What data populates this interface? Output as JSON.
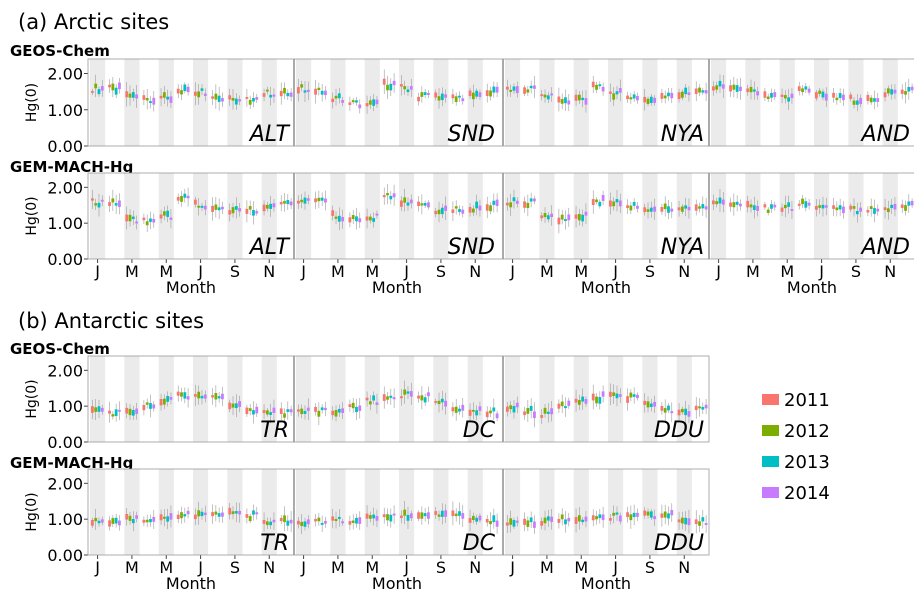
{
  "figure": {
    "section_a_title": "(a) Arctic sites",
    "section_b_title": "(b) Antarctic sites",
    "y_axis_label": "Hg(0)",
    "x_axis_label": "Month",
    "y_tick_labels": [
      "0.00",
      "1.00",
      "2.00"
    ],
    "x_tick_labels": [
      "J",
      "M",
      "M",
      "J",
      "S",
      "N"
    ]
  },
  "legend": {
    "items": [
      {
        "label": "2011",
        "color": "#f8766d"
      },
      {
        "label": "2012",
        "color": "#7cae00"
      },
      {
        "label": "2013",
        "color": "#00bfc4"
      },
      {
        "label": "2014",
        "color": "#c77cff"
      }
    ]
  },
  "chart_data": [
    {
      "type": "box",
      "section": "(a) Arctic sites",
      "row_label": "GEOS-Chem",
      "ylim": [
        0,
        2.4
      ],
      "years": [
        "2011",
        "2012",
        "2013",
        "2014"
      ],
      "sites": [
        {
          "name": "ALT",
          "monthly_median": [
            1.58,
            1.57,
            1.38,
            1.25,
            1.33,
            1.55,
            1.5,
            1.36,
            1.3,
            1.27,
            1.45,
            1.5
          ]
        },
        {
          "name": "SND",
          "monthly_median": [
            1.58,
            1.55,
            1.3,
            1.18,
            1.15,
            1.7,
            1.6,
            1.38,
            1.32,
            1.35,
            1.44,
            1.5
          ]
        },
        {
          "name": "NYA",
          "monthly_median": [
            1.58,
            1.57,
            1.38,
            1.22,
            1.3,
            1.65,
            1.45,
            1.36,
            1.3,
            1.35,
            1.45,
            1.52
          ]
        },
        {
          "name": "AND",
          "monthly_median": [
            1.65,
            1.6,
            1.48,
            1.35,
            1.32,
            1.55,
            1.42,
            1.32,
            1.28,
            1.32,
            1.48,
            1.52
          ]
        }
      ]
    },
    {
      "type": "box",
      "section": "(a) Arctic sites",
      "row_label": "GEM-MACH-Hg",
      "ylim": [
        0,
        2.4
      ],
      "years": [
        "2011",
        "2012",
        "2013",
        "2014"
      ],
      "sites": [
        {
          "name": "ALT",
          "monthly_median": [
            1.58,
            1.58,
            1.1,
            1.05,
            1.2,
            1.72,
            1.52,
            1.4,
            1.35,
            1.35,
            1.42,
            1.5
          ]
        },
        {
          "name": "SND",
          "monthly_median": [
            1.58,
            1.58,
            1.2,
            1.15,
            1.15,
            1.8,
            1.62,
            1.45,
            1.38,
            1.38,
            1.42,
            1.5
          ]
        },
        {
          "name": "NYA",
          "monthly_median": [
            1.58,
            1.58,
            1.25,
            1.1,
            1.2,
            1.62,
            1.6,
            1.45,
            1.38,
            1.38,
            1.42,
            1.5
          ]
        },
        {
          "name": "AND",
          "monthly_median": [
            1.6,
            1.58,
            1.48,
            1.42,
            1.45,
            1.52,
            1.45,
            1.38,
            1.36,
            1.36,
            1.42,
            1.5
          ]
        }
      ]
    },
    {
      "type": "box",
      "section": "(b) Antarctic sites",
      "row_label": "GEOS-Chem",
      "ylim": [
        0,
        2.4
      ],
      "years": [
        "2011",
        "2012",
        "2013",
        "2014"
      ],
      "sites": [
        {
          "name": "TR",
          "monthly_median": [
            0.85,
            0.8,
            0.8,
            1.0,
            1.15,
            1.28,
            1.32,
            1.25,
            1.05,
            0.88,
            0.85,
            0.8
          ]
        },
        {
          "name": "DC",
          "monthly_median": [
            0.88,
            0.85,
            0.85,
            0.98,
            1.15,
            1.28,
            1.32,
            1.25,
            1.08,
            0.9,
            0.85,
            0.82
          ]
        },
        {
          "name": "DDU",
          "monthly_median": [
            0.95,
            0.85,
            0.8,
            1.0,
            1.15,
            1.25,
            1.32,
            1.25,
            1.05,
            0.88,
            0.82,
            1.0
          ]
        }
      ]
    },
    {
      "type": "box",
      "section": "(b) Antarctic sites",
      "row_label": "GEM-MACH-Hg",
      "ylim": [
        0,
        2.4
      ],
      "years": [
        "2011",
        "2012",
        "2013",
        "2014"
      ],
      "sites": [
        {
          "name": "TR",
          "monthly_median": [
            0.95,
            0.95,
            0.98,
            1.0,
            1.05,
            1.1,
            1.12,
            1.15,
            1.15,
            1.1,
            0.95,
            0.95
          ]
        },
        {
          "name": "DC",
          "monthly_median": [
            0.93,
            0.93,
            0.95,
            0.98,
            1.03,
            1.08,
            1.1,
            1.12,
            1.12,
            1.1,
            1.0,
            0.95
          ]
        },
        {
          "name": "DDU",
          "monthly_median": [
            0.9,
            0.92,
            0.95,
            0.98,
            1.02,
            1.06,
            1.08,
            1.1,
            1.12,
            1.1,
            1.0,
            0.95
          ]
        }
      ]
    }
  ]
}
